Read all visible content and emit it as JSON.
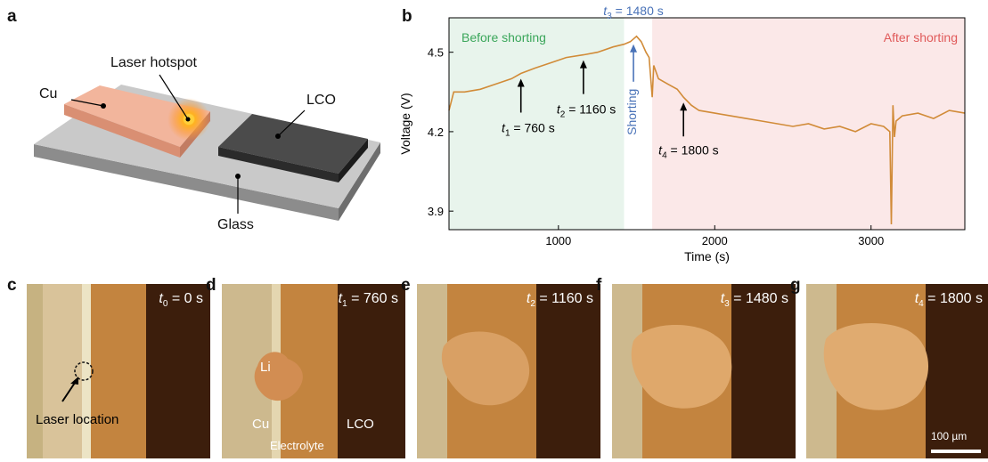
{
  "panel_a": {
    "letter": "a",
    "labels": {
      "cu": "Cu",
      "laser_hotspot": "Laser hotspot",
      "lco": "LCO",
      "glass": "Glass"
    }
  },
  "panel_b": {
    "letter": "b",
    "chart_data": {
      "type": "line",
      "xlabel": "Time (s)",
      "ylabel": "Voltage (V)",
      "xlim": [
        300,
        3600
      ],
      "ylim": [
        3.83,
        4.63
      ],
      "xticks": [
        1000,
        2000,
        3000
      ],
      "yticks": [
        3.9,
        4.2,
        4.5
      ],
      "grid": false,
      "regions": [
        {
          "label": "Before shorting",
          "x0": 300,
          "x1": 1420,
          "color": "#e8f4ec",
          "text_color": "#3aa65a"
        },
        {
          "label": "After shorting",
          "x0": 1600,
          "x1": 3600,
          "color": "#fbe8e8",
          "text_color": "#e05a5a"
        }
      ],
      "series": [
        {
          "color": "#d18b38",
          "x": [
            300,
            330,
            400,
            500,
            600,
            700,
            760,
            850,
            950,
            1050,
            1160,
            1250,
            1350,
            1420,
            1460,
            1480,
            1500,
            1530,
            1560,
            1580,
            1600,
            1610,
            1640,
            1700,
            1760,
            1800,
            1850,
            1900,
            2000,
            2100,
            2200,
            2300,
            2400,
            2500,
            2600,
            2700,
            2800,
            2900,
            3000,
            3080,
            3120,
            3130,
            3140,
            3150,
            3160,
            3200,
            3300,
            3400,
            3500,
            3600
          ],
          "y": [
            4.28,
            4.35,
            4.35,
            4.36,
            4.38,
            4.4,
            4.42,
            4.44,
            4.46,
            4.48,
            4.49,
            4.5,
            4.52,
            4.53,
            4.54,
            4.55,
            4.56,
            4.54,
            4.5,
            4.48,
            4.33,
            4.45,
            4.4,
            4.38,
            4.36,
            4.33,
            4.3,
            4.28,
            4.27,
            4.26,
            4.25,
            4.24,
            4.23,
            4.22,
            4.23,
            4.21,
            4.22,
            4.2,
            4.23,
            4.22,
            4.2,
            3.85,
            4.3,
            4.18,
            4.24,
            4.26,
            4.27,
            4.25,
            4.28,
            4.27
          ]
        }
      ],
      "annotations": [
        {
          "var": "t",
          "sub": "1",
          "text": " = 760 s",
          "x": 760,
          "y": 4.42
        },
        {
          "var": "t",
          "sub": "2",
          "text": " = 1160 s",
          "x": 1160,
          "y": 4.49
        },
        {
          "var": "t",
          "sub": "3",
          "text": " = 1480 s",
          "x": 1480,
          "y": 4.55,
          "color": "#4a73b8"
        },
        {
          "var": "t",
          "sub": "4",
          "text": " = 1800 s",
          "x": 1800,
          "y": 4.33
        }
      ],
      "shorting_label": "Shorting"
    }
  },
  "panels_micro": [
    {
      "letter": "c",
      "var": "t",
      "sub": "0",
      "value": " = 0 s",
      "labels": {
        "laser_location": "Laser location"
      }
    },
    {
      "letter": "d",
      "var": "t",
      "sub": "1",
      "value": " = 760 s",
      "labels": {
        "li": "Li",
        "cu": "Cu",
        "lco": "LCO",
        "electrolyte": "Electrolyte"
      }
    },
    {
      "letter": "e",
      "var": "t",
      "sub": "2",
      "value": " = 1160 s"
    },
    {
      "letter": "f",
      "var": "t",
      "sub": "3",
      "value": " = 1480 s"
    },
    {
      "letter": "g",
      "var": "t",
      "sub": "4",
      "value": " = 1800 s",
      "scalebar": "100 µm"
    }
  ]
}
